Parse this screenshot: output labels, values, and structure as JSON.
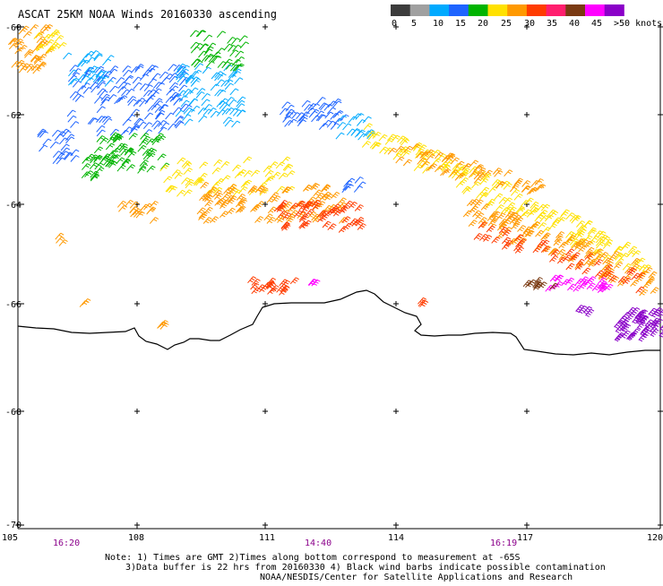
{
  "title": "ASCAT 25KM NOAA Winds 20160330 ascending",
  "legend": {
    "labels": [
      "0",
      "5",
      "10",
      "15",
      "20",
      "25",
      "30",
      "35",
      "40",
      "45",
      ">50 knots"
    ],
    "colors": [
      "#3c3c3c",
      "#a0a0a0",
      "#00aaff",
      "#1e64ff",
      "#00b400",
      "#ffe100",
      "#ff9900",
      "#ff3c00",
      "#ff1e6e",
      "#7a3a12",
      "#ff00ff",
      "#8a00c8"
    ]
  },
  "axes": {
    "lat_labels": [
      "-60",
      "-62",
      "-64",
      "-66",
      "-68",
      "-70"
    ],
    "lon_labels": [
      "105",
      "108",
      "111",
      "114",
      "117",
      "120"
    ]
  },
  "times": [
    "16:20",
    "14:40",
    "16:19"
  ],
  "notes": [
    "Note: 1) Times are GMT 2)Times along bottom correspond to measurement at -65S",
    "3)Data buffer is 22 hrs from 20160330 4) Black wind barbs indicate possible contamination",
    "NOAA/NESDIS/Center for Satellite Applications and Research"
  ],
  "coastline_color": "#000000"
}
